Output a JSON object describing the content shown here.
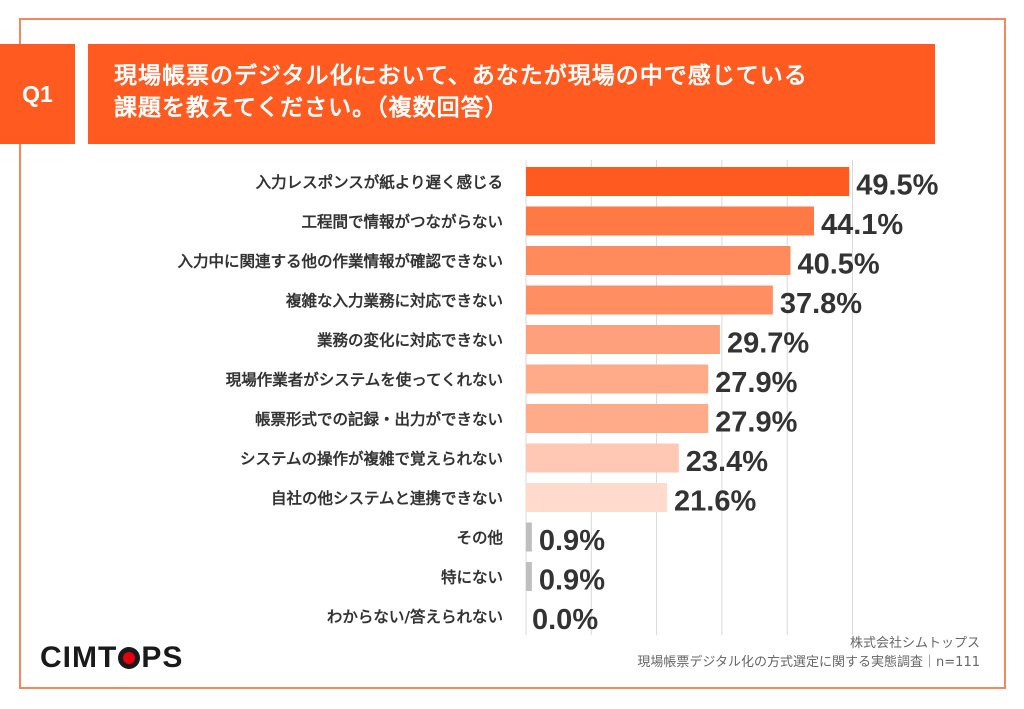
{
  "header": {
    "question_number": "Q1",
    "title_line1": "現場帳票のデジタル化において、あなたが現場の中で感じている",
    "title_line2": "課題を教えてください。（複数回答）",
    "accent_color": "#ff5a1f"
  },
  "footer": {
    "logo_prefix": "CIMT",
    "logo_suffix": "PS",
    "company": "株式会社シムトップス",
    "survey": "現場帳票デジタル化の方式選定に関する実態調査｜n=111"
  },
  "chart_data": {
    "type": "bar",
    "orientation": "horizontal",
    "title": "現場帳票のデジタル化において、あなたが現場の中で感じている課題を教えてください。（複数回答）",
    "xlabel": "",
    "ylabel": "",
    "unit": "%",
    "xlim": [
      0,
      50
    ],
    "grid": true,
    "grid_step": 10,
    "legend": "none",
    "categories": [
      "入力レスポンスが紙より遅く感じる",
      "工程間で情報がつながらない",
      "入力中に関連する他の作業情報が確認できない",
      "複雑な入力業務に対応できない",
      "業務の変化に対応できない",
      "現場作業者がシステムを使ってくれない",
      "帳票形式での記録・出力ができない",
      "システムの操作が複雑で覚えられない",
      "自社の他システムと連携できない",
      "その他",
      "特にない",
      "わからない/答えられない"
    ],
    "values": [
      49.5,
      44.1,
      40.5,
      37.8,
      29.7,
      27.9,
      27.9,
      23.4,
      21.6,
      0.9,
      0.9,
      0.0
    ],
    "value_labels": [
      "49.5%",
      "44.1%",
      "40.5%",
      "37.8%",
      "29.7%",
      "27.9%",
      "27.9%",
      "23.4%",
      "21.6%",
      "0.9%",
      "0.9%",
      "0.0%"
    ],
    "colors": [
      "#ff5a1f",
      "#ff7945",
      "#ff8a5c",
      "#ff8e62",
      "#ffa07c",
      "#ffab8a",
      "#ffab8a",
      "#ffc8b4",
      "#ffdacd",
      "#bfbfbf",
      "#bfbfbf",
      "#bfbfbf"
    ],
    "grid_color": "#d9d9d9"
  }
}
